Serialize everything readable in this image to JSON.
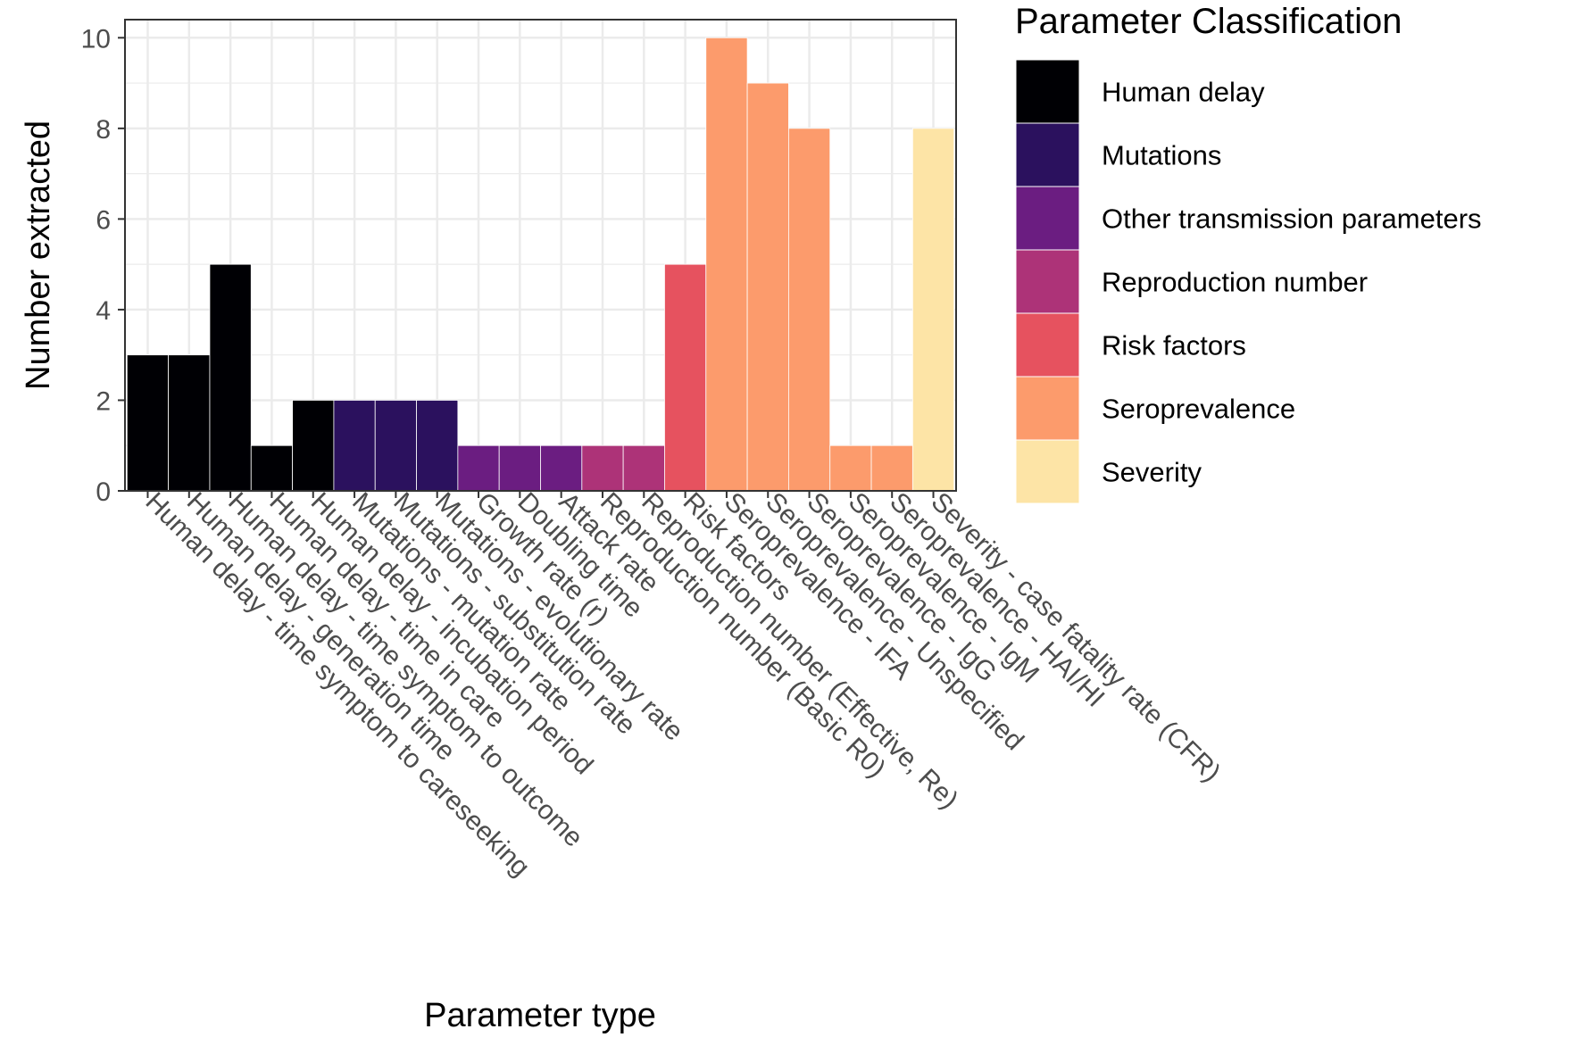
{
  "chart_data": {
    "type": "bar",
    "xlabel": "Parameter type",
    "ylabel": "Number extracted",
    "ylim": [
      0,
      10.4
    ],
    "yticks": [
      0,
      2,
      4,
      6,
      8,
      10
    ],
    "grid": true,
    "legend": {
      "title": "Parameter Classification",
      "placement": "right"
    },
    "groups": [
      {
        "name": "Human delay",
        "color": "#000004"
      },
      {
        "name": "Mutations",
        "color": "#2b115e"
      },
      {
        "name": "Other transmission parameters",
        "color": "#6b1d81"
      },
      {
        "name": "Reproduction number",
        "color": "#ad3378"
      },
      {
        "name": "Risk factors",
        "color": "#e6525f"
      },
      {
        "name": "Seroprevalence",
        "color": "#fc9b6c"
      },
      {
        "name": "Severity",
        "color": "#fde4a6"
      }
    ],
    "categories": [
      "Human delay - time symptom to careseeking",
      "Human delay - generation time",
      "Human delay - time symptom to outcome",
      "Human delay - time in care",
      "Human delay - incubation period",
      "Mutations - mutation rate",
      "Mutations - substitution rate",
      "Mutations - evolutionary rate",
      "Growth rate (r)",
      "Doubling time",
      "Attack rate",
      "Reproduction number (Basic R0)",
      "Reproduction number (Effective, Re)",
      "Risk factors",
      "Seroprevalence - IFA",
      "Seroprevalence - Unspecified",
      "Seroprevalence - IgG",
      "Seroprevalence - IgM",
      "Seroprevalence - HAI/HI",
      "Severity - case fatality rate (CFR)"
    ],
    "values": [
      3,
      3,
      5,
      1,
      2,
      2,
      2,
      2,
      1,
      1,
      1,
      1,
      1,
      5,
      10,
      9,
      8,
      1,
      1,
      8
    ],
    "category_groups": [
      "Human delay",
      "Human delay",
      "Human delay",
      "Human delay",
      "Human delay",
      "Mutations",
      "Mutations",
      "Mutations",
      "Other transmission parameters",
      "Other transmission parameters",
      "Other transmission parameters",
      "Reproduction number",
      "Reproduction number",
      "Risk factors",
      "Seroprevalence",
      "Seroprevalence",
      "Seroprevalence",
      "Seroprevalence",
      "Seroprevalence",
      "Severity"
    ]
  }
}
